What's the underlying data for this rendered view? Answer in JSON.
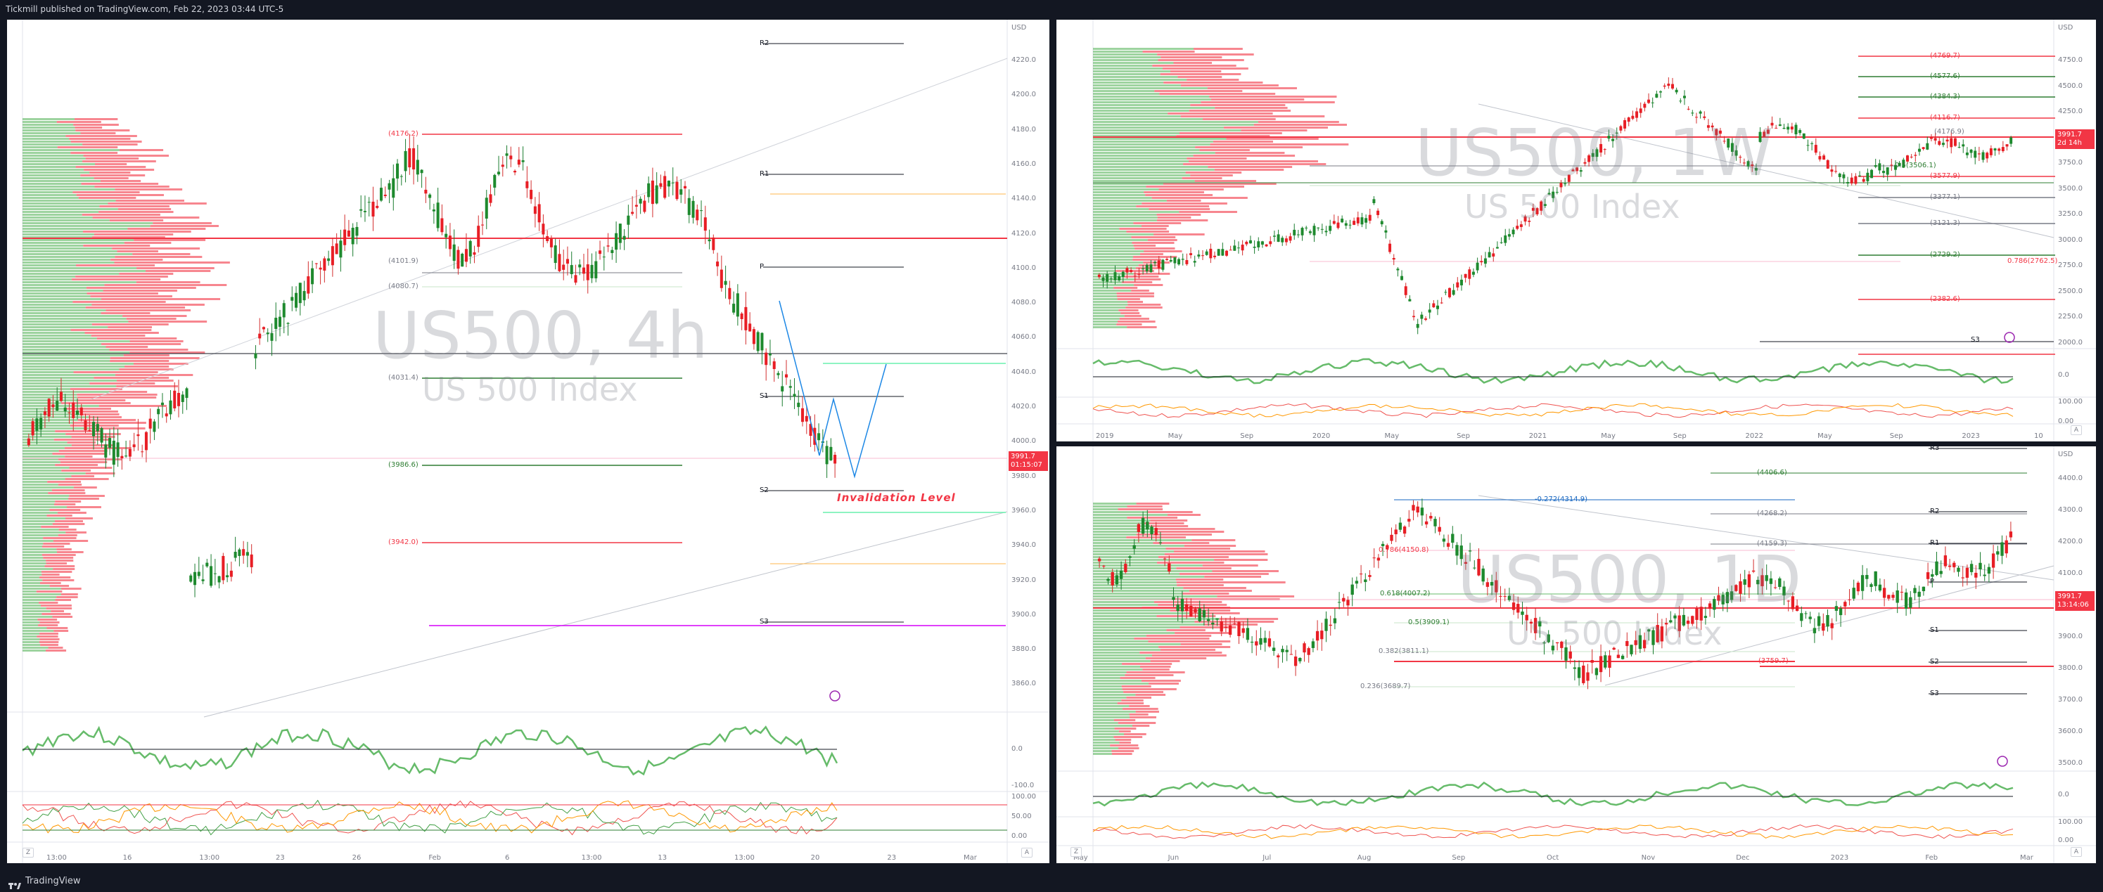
{
  "header": {
    "published": "Tickmill published on TradingView.com, Feb 22, 2023 03:44 UTC-5"
  },
  "footer": {
    "brand": "TradingView"
  },
  "colors": {
    "bull": "#089981",
    "bear": "#f23645",
    "green_level": "#2e7d32",
    "red_level": "#f23645",
    "background": "#ffffff",
    "frame": "#131722"
  },
  "left_chart": {
    "symbol": "US500, 4h",
    "description": "US 500 Index",
    "currency": "USD",
    "last_price": "3991.7",
    "countdown": "01:15:07",
    "invalidation_label": "Invalidation Level",
    "pivots": [
      "R2",
      "R1",
      "P",
      "S1",
      "S2",
      "S3"
    ],
    "levels": [
      "(4176.2)",
      "(4101.9)",
      "(4080.7)",
      "(4031.4)",
      "(3986.6)",
      "(3942.0)"
    ],
    "price_axis": [
      "4220.0",
      "4200.0",
      "4180.0",
      "4160.0",
      "4140.0",
      "4120.0",
      "4100.0",
      "4080.0",
      "4060.0",
      "4040.0",
      "4020.0",
      "4000.0",
      "3980.0",
      "3960.0",
      "3940.0",
      "3920.0",
      "3900.0",
      "3880.0",
      "3860.0"
    ],
    "time_axis": [
      "13:00",
      "16",
      "13:00",
      "23",
      "26",
      "Feb",
      "6",
      "13:00",
      "13",
      "13:00",
      "20",
      "23",
      "Mar"
    ],
    "osc1_axis": [
      "0.0",
      "-100.0"
    ],
    "osc2_axis": [
      "100.00",
      "50.00",
      "0.00"
    ],
    "buttons": [
      "Z",
      "A"
    ]
  },
  "weekly_chart": {
    "symbol": "US500, 1W",
    "description": "US 500 Index",
    "currency": "USD",
    "last_price": "3991.7",
    "countdown": "2d 14h",
    "fib_levels": [
      "0.5(3506.1)",
      "0.786(2762.5)",
      "(4176.9)"
    ],
    "right_levels": [
      "(4769.7)",
      "(4577.6)",
      "(4384.3)",
      "(4116.7)",
      "(3577.9)",
      "(3377.1)",
      "(3121.3)",
      "(2729.2)",
      "(2382.6)"
    ],
    "price_axis": [
      "4750.0",
      "4500.0",
      "4250.0",
      "4000.0",
      "3750.0",
      "3500.0",
      "3250.0",
      "3000.0",
      "2750.0",
      "2500.0",
      "2250.0",
      "2000.0"
    ],
    "time_axis": [
      "2019",
      "May",
      "Sep",
      "2020",
      "May",
      "Sep",
      "2021",
      "May",
      "Sep",
      "2022",
      "May",
      "Sep",
      "2023",
      "10"
    ],
    "osc1_axis": [
      "0.0"
    ],
    "osc2_axis": [
      "100.00",
      "0.00"
    ],
    "pivot_label": "S3",
    "buttons": [
      "Z",
      "A"
    ]
  },
  "daily_chart": {
    "symbol": "US500, 1D",
    "description": "US 500 Index",
    "currency": "USD",
    "last_price": "3991.7",
    "countdown": "13:14:06",
    "fib_levels": [
      "-0.272(4314.9)",
      "0.786(4150.8)",
      "0.618(4007.2)",
      "0.5(3909.1)",
      "0.382(3811.1)",
      "0.236(3689.7)",
      "(3759.7)",
      "(4406.6)",
      "(4268.2)",
      "(4159.3)"
    ],
    "pivots": [
      "R3",
      "R2",
      "R1",
      "P",
      "S1",
      "S2",
      "S3"
    ],
    "price_axis": [
      "4400.0",
      "4300.0",
      "4200.0",
      "4100.0",
      "4000.0",
      "3900.0",
      "3800.0",
      "3700.0",
      "3600.0",
      "3500.0"
    ],
    "time_axis": [
      "May",
      "Jun",
      "Jul",
      "Aug",
      "Sep",
      "Oct",
      "Nov",
      "Dec",
      "2023",
      "Feb",
      "Mar"
    ],
    "osc1_axis": [
      "0.0"
    ],
    "osc2_axis": [
      "100.00",
      "0.00"
    ],
    "buttons": [
      "Z",
      "A"
    ]
  }
}
